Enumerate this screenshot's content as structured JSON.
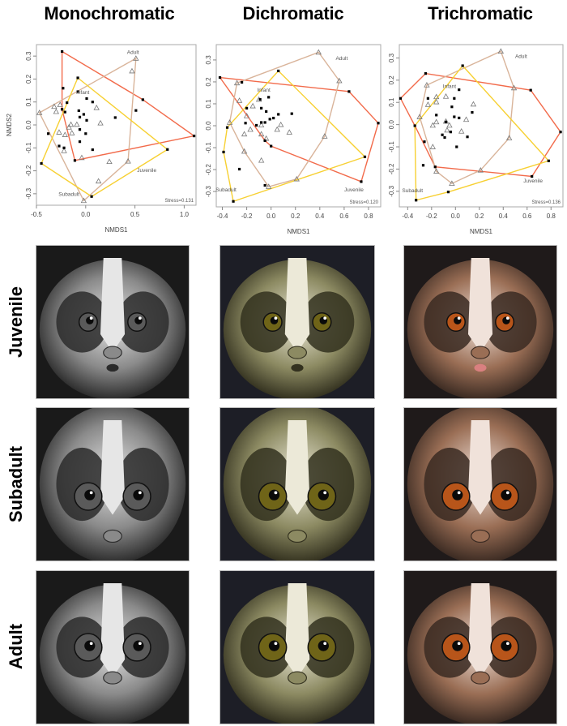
{
  "columns": [
    "Monochromatic",
    "Dichromatic",
    "Trichromatic"
  ],
  "rows": [
    "Juvenile",
    "Subadult",
    "Adult"
  ],
  "colors": {
    "infant_hull": "#f26b4b",
    "adult_hull": "#d9b49a",
    "subadult_hull": "#f7d032",
    "juvenile_hull": "#f26b4b",
    "point_square": "#000000",
    "point_triangle": "#777777"
  },
  "photo_tints": {
    "Monochromatic": {
      "fur": "#8a8a8a",
      "dark": "#2b2b2b",
      "light": "#e6e6e6",
      "eye": "#5a5a5a",
      "bg": "#1a1a1a"
    },
    "Dichromatic": {
      "fur": "#8c8a62",
      "dark": "#33311f",
      "light": "#ece9d8",
      "eye": "#6f6418",
      "bg": "#1d1e26"
    },
    "Trichromatic": {
      "fur": "#9a6e55",
      "dark": "#3a2a22",
      "light": "#f0e2da",
      "eye": "#b8551a",
      "bg": "#1f1a1a"
    }
  },
  "chart_data": [
    {
      "type": "scatter",
      "title": "Monochromatic",
      "xlabel": "NMDS1",
      "ylabel": "NMDS2",
      "xlim": [
        -0.5,
        1.12
      ],
      "ylim": [
        -0.35,
        0.35
      ],
      "xticks": [
        "-0.5",
        "0.0",
        "0.5",
        "1.0"
      ],
      "xtick_values": [
        -0.5,
        0.0,
        0.5,
        1.0
      ],
      "yticks": [
        "-0.3",
        "-0.2",
        "-0.1",
        "0.0",
        "0.1",
        "0.2",
        "0.3"
      ],
      "ytick_values": [
        -0.3,
        -0.2,
        -0.1,
        0.0,
        0.1,
        0.2,
        0.3
      ],
      "stress": "Stress=0.131",
      "group_labels": [
        {
          "text": "Adult",
          "x": 0.48,
          "y": 0.31
        },
        {
          "text": "Infant",
          "x": -0.03,
          "y": 0.135
        },
        {
          "text": "Juvenile",
          "x": 0.62,
          "y": -0.205
        },
        {
          "text": "Subadult",
          "x": -0.17,
          "y": -0.31
        }
      ],
      "squares": [
        [
          -0.24,
          0.32
        ],
        [
          -0.23,
          0.16
        ],
        [
          -0.08,
          0.205
        ],
        [
          -0.08,
          0.145
        ],
        [
          0.01,
          0.115
        ],
        [
          0.07,
          0.1
        ],
        [
          -0.19,
          0.097
        ],
        [
          -0.24,
          0.068
        ],
        [
          -0.21,
          0.056
        ],
        [
          -0.07,
          0.062
        ],
        [
          -0.02,
          0.046
        ],
        [
          -0.06,
          0.034
        ],
        [
          0.01,
          0.02
        ],
        [
          0.3,
          0.032
        ],
        [
          0.51,
          0.063
        ],
        [
          0.58,
          0.11
        ],
        [
          -0.06,
          -0.02
        ],
        [
          0.0,
          -0.038
        ],
        [
          -0.38,
          -0.038
        ],
        [
          -0.06,
          -0.073
        ],
        [
          0.07,
          -0.108
        ],
        [
          -0.27,
          -0.092
        ],
        [
          -0.22,
          -0.1
        ],
        [
          -0.11,
          -0.155
        ],
        [
          -0.45,
          -0.168
        ],
        [
          0.06,
          -0.312
        ],
        [
          0.83,
          -0.107
        ],
        [
          1.1,
          -0.048
        ]
      ],
      "triangles": [
        [
          0.51,
          0.29
        ],
        [
          0.47,
          0.235
        ],
        [
          -0.32,
          0.08
        ],
        [
          -0.26,
          0.088
        ],
        [
          -0.3,
          0.058
        ],
        [
          0.11,
          0.075
        ],
        [
          -0.15,
          0.002
        ],
        [
          -0.09,
          0.002
        ],
        [
          0.15,
          0.008
        ],
        [
          -0.17,
          -0.01
        ],
        [
          -0.27,
          -0.032
        ],
        [
          -0.14,
          -0.035
        ],
        [
          -0.21,
          -0.043
        ],
        [
          -0.22,
          -0.113
        ],
        [
          -0.04,
          -0.143
        ],
        [
          -0.47,
          0.053
        ],
        [
          0.24,
          -0.16
        ],
        [
          0.43,
          -0.158
        ],
        [
          0.13,
          -0.245
        ],
        [
          -0.02,
          -0.33
        ]
      ],
      "hulls": [
        {
          "group": "Infant",
          "color": "#f26b4b",
          "points": [
            [
              -0.24,
              0.32
            ],
            [
              0.58,
              0.11
            ],
            [
              1.1,
              -0.048
            ],
            [
              -0.11,
              -0.155
            ],
            [
              -0.24,
              0.068
            ]
          ]
        },
        {
          "group": "Adult",
          "color": "#d9b49a",
          "points": [
            [
              -0.47,
              0.053
            ],
            [
              0.51,
              0.29
            ],
            [
              0.43,
              -0.158
            ],
            [
              -0.02,
              -0.33
            ]
          ]
        },
        {
          "group": "Subadult",
          "color": "#f7d032",
          "points": [
            [
              -0.08,
              0.205
            ],
            [
              0.83,
              -0.107
            ],
            [
              0.06,
              -0.312
            ],
            [
              -0.45,
              -0.168
            ]
          ]
        }
      ]
    },
    {
      "type": "scatter",
      "title": "Dichromatic",
      "xlabel": "NMDS1",
      "ylabel": "",
      "xlim": [
        -0.45,
        0.9
      ],
      "ylim": [
        -0.37,
        0.37
      ],
      "xticks": [
        "-0.4",
        "-0.2",
        "0.0",
        "0.2",
        "0.4",
        "0.6",
        "0.8"
      ],
      "xtick_values": [
        -0.4,
        -0.2,
        0.0,
        0.2,
        0.4,
        0.6,
        0.8
      ],
      "yticks": [
        "-0.3",
        "-0.2",
        "-0.1",
        "0.0",
        "0.1",
        "0.2",
        "0.3"
      ],
      "ytick_values": [
        -0.3,
        -0.2,
        -0.1,
        0.0,
        0.1,
        0.2,
        0.3
      ],
      "stress": "Stress=0.120",
      "group_labels": [
        {
          "text": "Adult",
          "x": 0.58,
          "y": 0.3
        },
        {
          "text": "Infant",
          "x": -0.06,
          "y": 0.155
        },
        {
          "text": "Juvenile",
          "x": 0.68,
          "y": -0.3
        },
        {
          "text": "Subadult",
          "x": -0.37,
          "y": -0.3
        }
      ],
      "squares": [
        [
          -0.42,
          0.22
        ],
        [
          -0.24,
          0.198
        ],
        [
          0.06,
          0.25
        ],
        [
          0.64,
          0.156
        ],
        [
          0.88,
          0.012
        ],
        [
          -0.02,
          0.13
        ],
        [
          -0.09,
          0.12
        ],
        [
          -0.2,
          0.08
        ],
        [
          -0.08,
          0.08
        ],
        [
          -0.04,
          0.065
        ],
        [
          0.06,
          0.052
        ],
        [
          0.17,
          0.055
        ],
        [
          0.02,
          0.035
        ],
        [
          -0.01,
          0.03
        ],
        [
          -0.08,
          0.015
        ],
        [
          -0.05,
          0.015
        ],
        [
          -0.21,
          0.012
        ],
        [
          -0.12,
          0.002
        ],
        [
          -0.36,
          -0.008
        ],
        [
          -0.05,
          -0.068
        ],
        [
          0.0,
          -0.093
        ],
        [
          -0.39,
          -0.12
        ],
        [
          -0.26,
          -0.198
        ],
        [
          -0.05,
          -0.272
        ],
        [
          -0.31,
          -0.345
        ],
        [
          0.77,
          -0.142
        ],
        [
          0.74,
          -0.255
        ]
      ],
      "triangles": [
        [
          0.39,
          0.335
        ],
        [
          0.56,
          0.205
        ],
        [
          -0.28,
          0.195
        ],
        [
          -0.26,
          0.115
        ],
        [
          -0.1,
          0.12
        ],
        [
          -0.15,
          0.09
        ],
        [
          -0.2,
          0.045
        ],
        [
          -0.34,
          0.015
        ],
        [
          -0.08,
          0.003
        ],
        [
          0.08,
          0.005
        ],
        [
          -0.17,
          -0.017
        ],
        [
          0.05,
          -0.017
        ],
        [
          0.15,
          -0.03
        ],
        [
          -0.22,
          -0.038
        ],
        [
          -0.08,
          -0.038
        ],
        [
          -0.04,
          -0.058
        ],
        [
          0.44,
          -0.048
        ],
        [
          -0.22,
          -0.117
        ],
        [
          -0.08,
          -0.158
        ],
        [
          0.21,
          -0.243
        ],
        [
          -0.02,
          -0.278
        ]
      ],
      "hulls": [
        {
          "group": "Infant",
          "color": "#f26b4b",
          "points": [
            [
              -0.42,
              0.22
            ],
            [
              0.64,
              0.156
            ],
            [
              0.88,
              0.012
            ],
            [
              0.74,
              -0.255
            ],
            [
              0.0,
              -0.093
            ],
            [
              -0.05,
              -0.068
            ]
          ]
        },
        {
          "group": "Adult",
          "color": "#d9b49a",
          "points": [
            [
              -0.28,
              0.195
            ],
            [
              0.39,
              0.335
            ],
            [
              0.56,
              0.205
            ],
            [
              0.44,
              -0.048
            ],
            [
              0.21,
              -0.243
            ],
            [
              -0.02,
              -0.278
            ],
            [
              -0.22,
              -0.117
            ],
            [
              -0.34,
              0.015
            ]
          ]
        },
        {
          "group": "Subadult",
          "color": "#f7d032",
          "points": [
            [
              0.06,
              0.25
            ],
            [
              0.77,
              -0.142
            ],
            [
              -0.31,
              -0.345
            ],
            [
              -0.39,
              -0.12
            ],
            [
              -0.36,
              -0.008
            ]
          ]
        }
      ]
    },
    {
      "type": "scatter",
      "title": "Trichromatic",
      "xlabel": "NMDS1",
      "ylabel": "",
      "xlim": [
        -0.47,
        0.9
      ],
      "ylim": [
        -0.37,
        0.36
      ],
      "xticks": [
        "-0.4",
        "-0.2",
        "0.0",
        "0.2",
        "0.4",
        "0.6",
        "0.8"
      ],
      "xtick_values": [
        -0.4,
        -0.2,
        0.0,
        0.2,
        0.4,
        0.6,
        0.8
      ],
      "yticks": [
        "-0.3",
        "-0.2",
        "-0.1",
        "0.0",
        "0.1",
        "0.2",
        "0.3"
      ],
      "ytick_values": [
        -0.3,
        -0.2,
        -0.1,
        0.0,
        0.1,
        0.2,
        0.3
      ],
      "stress": "Stress=0.136",
      "group_labels": [
        {
          "text": "Adult",
          "x": 0.55,
          "y": 0.3
        },
        {
          "text": "Infant",
          "x": -0.05,
          "y": 0.165
        },
        {
          "text": "Juvenile",
          "x": 0.65,
          "y": -0.26
        },
        {
          "text": "Subadult",
          "x": -0.36,
          "y": -0.305
        }
      ],
      "squares": [
        [
          -0.46,
          0.118
        ],
        [
          -0.25,
          0.23
        ],
        [
          0.06,
          0.265
        ],
        [
          0.63,
          0.155
        ],
        [
          0.88,
          -0.033
        ],
        [
          0.64,
          -0.233
        ],
        [
          0.03,
          0.157
        ],
        [
          -0.23,
          0.118
        ],
        [
          -0.01,
          0.118
        ],
        [
          -0.03,
          0.08
        ],
        [
          -0.16,
          0.043
        ],
        [
          0.14,
          0.055
        ],
        [
          -0.01,
          0.035
        ],
        [
          0.03,
          0.03
        ],
        [
          -0.08,
          0.012
        ],
        [
          -0.34,
          -0.005
        ],
        [
          -0.04,
          -0.033
        ],
        [
          -0.11,
          -0.046
        ],
        [
          -0.09,
          -0.058
        ],
        [
          0.1,
          -0.055
        ],
        [
          0.01,
          -0.1
        ],
        [
          -0.26,
          -0.077
        ],
        [
          -0.27,
          -0.183
        ],
        [
          -0.17,
          -0.19
        ],
        [
          -0.06,
          -0.303
        ],
        [
          -0.33,
          -0.34
        ],
        [
          0.78,
          -0.163
        ]
      ],
      "triangles": [
        [
          0.38,
          0.33
        ],
        [
          0.49,
          0.165
        ],
        [
          -0.24,
          0.178
        ],
        [
          -0.16,
          0.125
        ],
        [
          -0.08,
          0.127
        ],
        [
          -0.16,
          0.102
        ],
        [
          -0.23,
          0.09
        ],
        [
          0.15,
          0.092
        ],
        [
          -0.3,
          0.035
        ],
        [
          -0.08,
          0.015
        ],
        [
          -0.16,
          0.012
        ],
        [
          0.09,
          0.023
        ],
        [
          -0.19,
          -0.003
        ],
        [
          -0.05,
          -0.003
        ],
        [
          -0.07,
          -0.025
        ],
        [
          0.05,
          -0.03
        ],
        [
          0.45,
          -0.06
        ],
        [
          -0.19,
          -0.1
        ],
        [
          -0.16,
          -0.21
        ],
        [
          0.21,
          -0.205
        ],
        [
          -0.03,
          -0.265
        ]
      ],
      "hulls": [
        {
          "group": "Infant",
          "color": "#f26b4b",
          "points": [
            [
              -0.46,
              0.118
            ],
            [
              -0.25,
              0.23
            ],
            [
              0.63,
              0.155
            ],
            [
              0.88,
              -0.033
            ],
            [
              0.64,
              -0.233
            ],
            [
              -0.17,
              -0.19
            ],
            [
              -0.34,
              -0.005
            ]
          ]
        },
        {
          "group": "Adult",
          "color": "#d9b49a",
          "points": [
            [
              -0.24,
              0.178
            ],
            [
              0.38,
              0.33
            ],
            [
              0.49,
              0.165
            ],
            [
              0.45,
              -0.06
            ],
            [
              0.21,
              -0.205
            ],
            [
              -0.03,
              -0.265
            ],
            [
              -0.16,
              -0.21
            ],
            [
              -0.3,
              0.035
            ]
          ]
        },
        {
          "group": "Subadult",
          "color": "#f7d032",
          "points": [
            [
              0.06,
              0.265
            ],
            [
              0.78,
              -0.163
            ],
            [
              -0.06,
              -0.303
            ],
            [
              -0.33,
              -0.34
            ],
            [
              -0.34,
              -0.005
            ]
          ]
        }
      ]
    }
  ]
}
